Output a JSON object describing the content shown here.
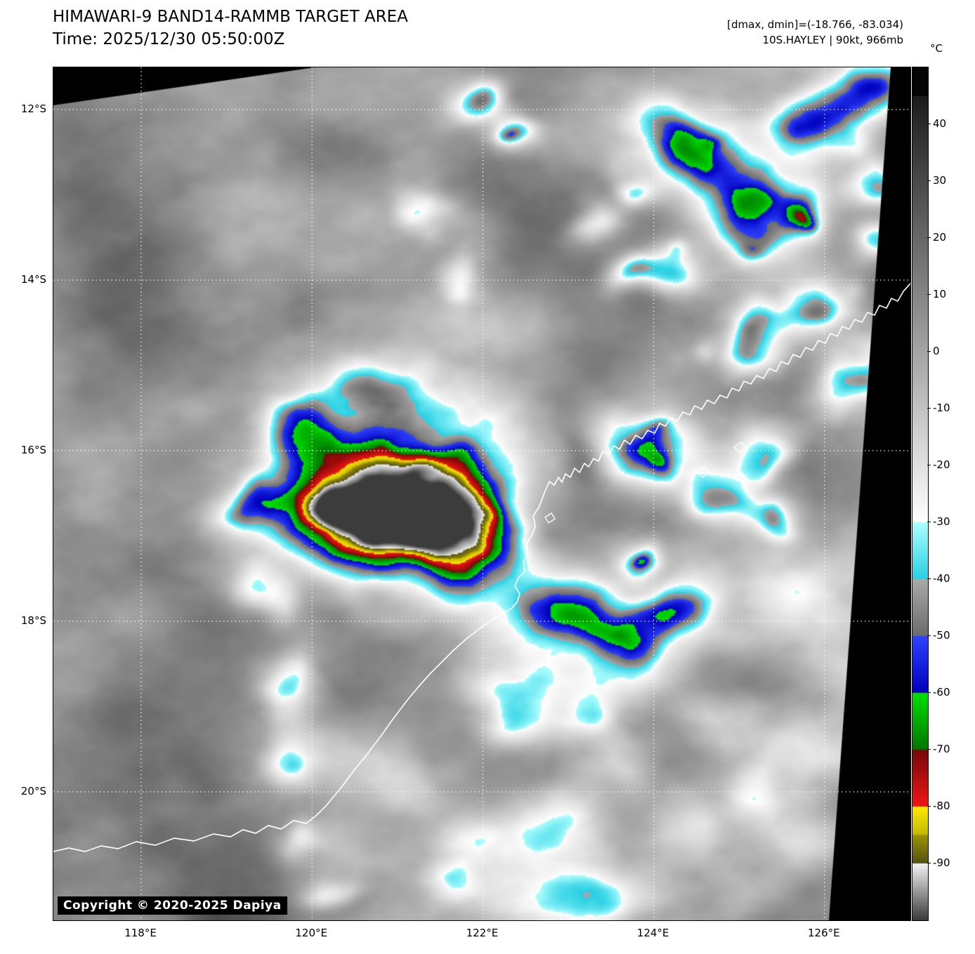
{
  "header": {
    "title": "HIMAWARI-9 BAND14-RAMMB TARGET AREA",
    "time_line": "Time: 2025/12/30 05:50:00Z",
    "dmax_dmin": "[dmax, dmin]=(-18.766, -83.034)",
    "storm_info": "10S.HAYLEY | 90kt, 966mb"
  },
  "colorbar": {
    "unit": "°C",
    "ticks": [
      40,
      30,
      20,
      10,
      0,
      -10,
      -20,
      -30,
      -40,
      -50,
      -60,
      -70,
      -80,
      -90
    ],
    "scale_top_c": 50,
    "scale_bottom_c": -100
  },
  "axes": {
    "lat": [
      {
        "label": "12°S",
        "deg": 12
      },
      {
        "label": "14°S",
        "deg": 14
      },
      {
        "label": "16°S",
        "deg": 16
      },
      {
        "label": "18°S",
        "deg": 18
      },
      {
        "label": "20°S",
        "deg": 20
      }
    ],
    "lon": [
      {
        "label": "118°E",
        "deg": 118
      },
      {
        "label": "120°E",
        "deg": 120
      },
      {
        "label": "122°E",
        "deg": 122
      },
      {
        "label": "124°E",
        "deg": 124
      },
      {
        "label": "126°E",
        "deg": 126
      }
    ]
  },
  "map": {
    "copyright": "Copyright © 2020-2025 Dapiya"
  }
}
